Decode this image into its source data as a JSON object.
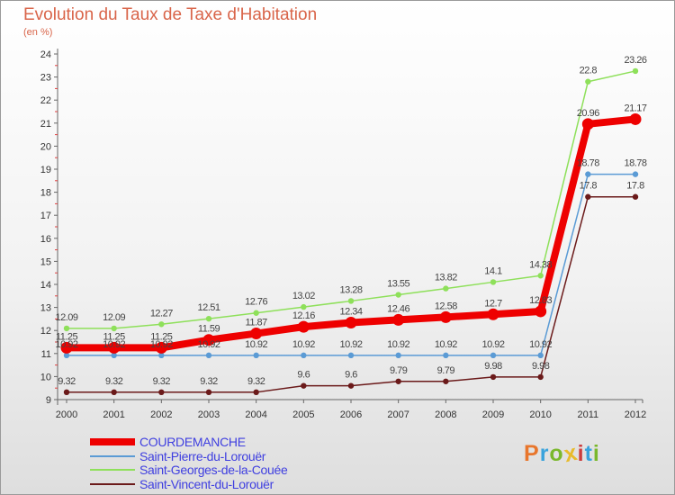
{
  "title": "Evolution du Taux de Taxe d'Habitation",
  "unit_label": "(en %)",
  "logo_text": "Proxiti",
  "logo_colors": [
    "#e8762c",
    "#3aa3dc",
    "#7ab82c",
    "#e8bb2c",
    "#cc3c3c",
    "#3aa3dc",
    "#7ab82c"
  ],
  "chart_data": {
    "type": "line",
    "title": "Evolution du Taux de Taxe d'Habitation",
    "ylabel": "(en %)",
    "xlabel": "",
    "x": [
      "2000",
      "2001",
      "2002",
      "2003",
      "2004",
      "2005",
      "2006",
      "2007",
      "2008",
      "2009",
      "2010",
      "2011",
      "2012"
    ],
    "ylim": [
      9,
      24
    ],
    "yticks": [
      9,
      10,
      11,
      12,
      13,
      14,
      15,
      16,
      17,
      18,
      19,
      20,
      21,
      22,
      23,
      24
    ],
    "grid": false,
    "legend_position": "bottom-left",
    "series": [
      {
        "name": "COURDEMANCHE",
        "color": "#ee0000",
        "values": [
          11.25,
          11.25,
          11.25,
          11.59,
          11.87,
          12.16,
          12.34,
          12.46,
          12.58,
          12.7,
          12.83,
          20.96,
          21.17
        ],
        "labels": [
          "11.25",
          "11.25",
          "11.25",
          "11.59",
          "11.87",
          "12.16",
          "12.34",
          "12.46",
          "12.58",
          "12.7",
          "12.83",
          "20.96",
          "21.17"
        ]
      },
      {
        "name": "Saint-Pierre-du-Lorouër",
        "color": "#5b9bd5",
        "values": [
          10.92,
          10.92,
          10.92,
          10.92,
          10.92,
          10.92,
          10.92,
          10.92,
          10.92,
          10.92,
          10.92,
          18.78,
          18.78
        ],
        "labels": [
          "10.92",
          "10.92",
          "10.92",
          "10.92",
          "10.92",
          "10.92",
          "10.92",
          "10.92",
          "10.92",
          "10.92",
          "10.92",
          "18.78",
          "18.78"
        ]
      },
      {
        "name": "Saint-Georges-de-la-Couée",
        "color": "#8ee05a",
        "values": [
          12.09,
          12.09,
          12.27,
          12.51,
          12.76,
          13.02,
          13.28,
          13.55,
          13.82,
          14.1,
          14.38,
          22.8,
          23.26
        ],
        "labels": [
          "12.09",
          "12.09",
          "12.27",
          "12.51",
          "12.76",
          "13.02",
          "13.28",
          "13.55",
          "13.82",
          "14.1",
          "14.38",
          "22.8",
          "23.26"
        ]
      },
      {
        "name": "Saint-Vincent-du-Lorouër",
        "color": "#6b1a1a",
        "values": [
          9.32,
          9.32,
          9.32,
          9.32,
          9.32,
          9.6,
          9.6,
          9.79,
          9.79,
          9.98,
          9.98,
          17.8,
          17.8
        ],
        "labels": [
          "9.32",
          "9.32",
          "9.32",
          "9.32",
          "9.32",
          "9.6",
          "9.6",
          "9.79",
          "9.79",
          "9.98",
          "9.98",
          "17.8",
          "17.8"
        ]
      }
    ]
  }
}
